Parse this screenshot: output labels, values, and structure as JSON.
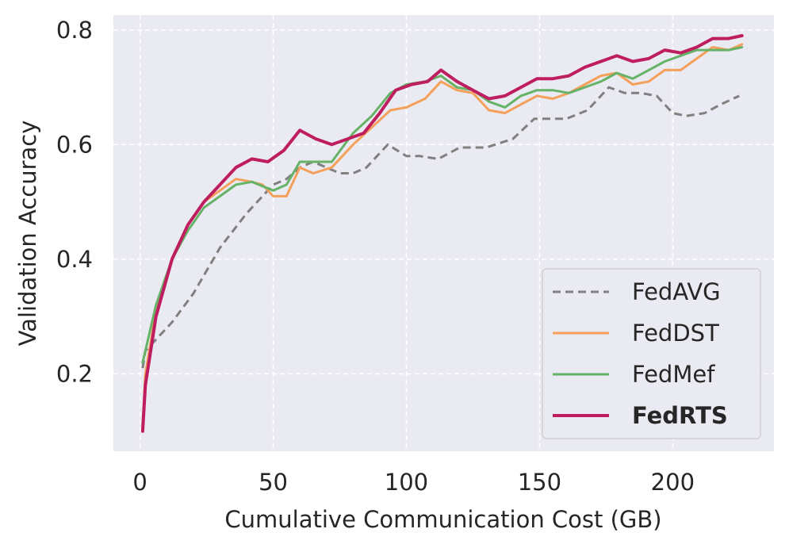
{
  "chart_data": {
    "type": "line",
    "title": "",
    "xlabel": "Cumulative Communication Cost (GB)",
    "ylabel": "Validation Accuracy",
    "xlim": [
      -10,
      238
    ],
    "ylim": [
      0.065,
      0.826
    ],
    "xticks": [
      0,
      50,
      100,
      150,
      200
    ],
    "xtick_labels": [
      "0",
      "50",
      "100",
      "150",
      "200"
    ],
    "yticks": [
      0.2,
      0.4,
      0.6,
      0.8
    ],
    "ytick_labels": [
      "0.2",
      "0.4",
      "0.6",
      "0.8"
    ],
    "grid": true,
    "legend_position": "lower-right",
    "series": [
      {
        "name": "FedAVG",
        "color": "#808080",
        "dashed": true,
        "bold_label": false,
        "x": [
          1,
          2,
          6,
          12,
          20,
          30,
          40,
          50,
          55,
          60,
          65,
          70,
          75,
          80,
          85,
          93,
          100,
          105,
          112,
          120,
          125,
          130,
          140,
          148,
          155,
          160,
          168,
          176,
          182,
          188,
          194,
          200,
          205,
          212,
          218,
          225
        ],
        "y": [
          0.21,
          0.24,
          0.26,
          0.29,
          0.34,
          0.42,
          0.48,
          0.53,
          0.54,
          0.56,
          0.57,
          0.56,
          0.55,
          0.55,
          0.56,
          0.6,
          0.58,
          0.58,
          0.575,
          0.595,
          0.595,
          0.595,
          0.61,
          0.645,
          0.645,
          0.645,
          0.66,
          0.7,
          0.69,
          0.69,
          0.685,
          0.655,
          0.65,
          0.655,
          0.67,
          0.685
        ]
      },
      {
        "name": "FedDST",
        "color": "#f5a05a",
        "dashed": false,
        "bold_label": false,
        "x": [
          1,
          2,
          6,
          12,
          18,
          24,
          30,
          36,
          42,
          46,
          50,
          55,
          60,
          65,
          72,
          80,
          87,
          94,
          100,
          107,
          113,
          119,
          125,
          131,
          137,
          143,
          149,
          155,
          161,
          167,
          173,
          179,
          185,
          191,
          197,
          203,
          209,
          215,
          221,
          226
        ],
        "y": [
          0.11,
          0.2,
          0.31,
          0.4,
          0.46,
          0.5,
          0.52,
          0.54,
          0.535,
          0.53,
          0.51,
          0.51,
          0.56,
          0.55,
          0.56,
          0.6,
          0.63,
          0.66,
          0.665,
          0.68,
          0.71,
          0.695,
          0.69,
          0.66,
          0.655,
          0.67,
          0.685,
          0.68,
          0.69,
          0.705,
          0.72,
          0.725,
          0.705,
          0.71,
          0.73,
          0.73,
          0.75,
          0.77,
          0.765,
          0.775
        ]
      },
      {
        "name": "FedMef",
        "color": "#66b266",
        "dashed": false,
        "bold_label": false,
        "x": [
          1,
          2,
          6,
          12,
          18,
          24,
          30,
          36,
          42,
          50,
          55,
          60,
          65,
          72,
          80,
          87,
          94,
          100,
          107,
          113,
          119,
          125,
          131,
          137,
          143,
          149,
          155,
          161,
          167,
          173,
          179,
          185,
          191,
          197,
          203,
          209,
          215,
          221,
          226
        ],
        "y": [
          0.22,
          0.24,
          0.32,
          0.4,
          0.45,
          0.49,
          0.51,
          0.53,
          0.535,
          0.52,
          0.53,
          0.57,
          0.57,
          0.57,
          0.62,
          0.65,
          0.69,
          0.705,
          0.71,
          0.72,
          0.7,
          0.695,
          0.675,
          0.665,
          0.685,
          0.695,
          0.695,
          0.69,
          0.7,
          0.71,
          0.725,
          0.715,
          0.73,
          0.745,
          0.755,
          0.765,
          0.765,
          0.765,
          0.77
        ]
      },
      {
        "name": "FedRTS",
        "color": "#be1d5f",
        "dashed": false,
        "bold_label": true,
        "x": [
          1,
          2,
          6,
          12,
          18,
          24,
          30,
          36,
          42,
          48,
          54,
          60,
          66,
          72,
          78,
          84,
          90,
          96,
          102,
          108,
          113,
          119,
          125,
          131,
          137,
          143,
          149,
          155,
          161,
          167,
          173,
          179,
          185,
          191,
          197,
          203,
          209,
          215,
          221,
          226
        ],
        "y": [
          0.1,
          0.18,
          0.3,
          0.4,
          0.46,
          0.5,
          0.53,
          0.56,
          0.575,
          0.57,
          0.59,
          0.625,
          0.61,
          0.6,
          0.61,
          0.62,
          0.655,
          0.695,
          0.705,
          0.71,
          0.73,
          0.71,
          0.695,
          0.68,
          0.685,
          0.7,
          0.715,
          0.715,
          0.72,
          0.735,
          0.745,
          0.755,
          0.745,
          0.75,
          0.765,
          0.76,
          0.77,
          0.785,
          0.785,
          0.79
        ]
      }
    ]
  }
}
